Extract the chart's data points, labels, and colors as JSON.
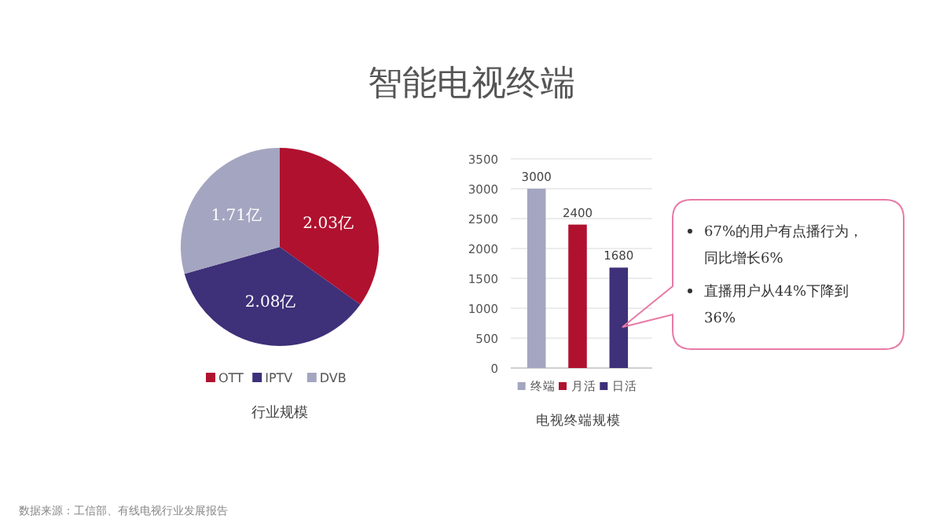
{
  "chart_data": [
    {
      "type": "pie",
      "title": "智能电视终端",
      "categories": [
        "OTT",
        "IPTV",
        "DVB"
      ],
      "values": [
        2.03,
        2.08,
        1.71
      ],
      "colors": [
        "#b0112f",
        "#3e3079",
        "#a4a5c0"
      ],
      "value_labels": [
        "2.03亿",
        "2.08亿",
        "1.71亿"
      ],
      "legend": "bottom",
      "annotations": [
        "行业规模",
        "数据来源：工信部、有线电视行业发展报告"
      ]
    },
    {
      "type": "bar",
      "categories": [
        "终端",
        "月活",
        "日活"
      ],
      "values": [
        3000,
        2400,
        1680
      ],
      "colors": [
        "#a4a5c0",
        "#b0112f",
        "#3e3079"
      ],
      "ylim": [
        0,
        3500
      ],
      "yticks": [
        0,
        500,
        1000,
        1500,
        2000,
        2500,
        3000,
        3500
      ],
      "grid": "y",
      "data_labels": true,
      "annotations": [
        "电视终端规模",
        "67%的用户有点播行为，同比增长6%",
        "直播用户从44%下降到36%"
      ]
    }
  ]
}
